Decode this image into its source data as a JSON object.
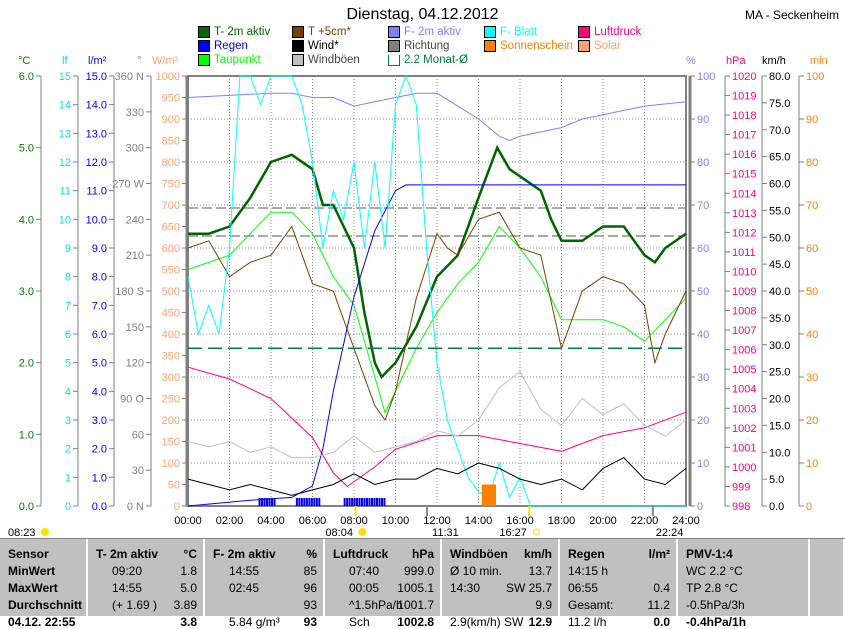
{
  "title": "Dienstag, 04.12.2012",
  "station": "MA - Seckenheim",
  "legend": [
    {
      "label": "T- 2m aktiv",
      "color": "#006400"
    },
    {
      "label": "T +5cm*",
      "color": "#7b3f00"
    },
    {
      "label": "F- 2m aktiv",
      "color": "#8080ff"
    },
    {
      "label": "F- Blatt",
      "color": "#00ffff"
    },
    {
      "label": "Luftdruck",
      "color": "#ff0080"
    },
    {
      "label": "Regen",
      "color": "#0000ff"
    },
    {
      "label": "Wind*",
      "color": "#000000"
    },
    {
      "label": "Richtung",
      "color": "#808080"
    },
    {
      "label": "Sonnenschein",
      "color": "#ff8000"
    },
    {
      "label": "Solar",
      "color": "#ffa070"
    },
    {
      "label": "Taupunkt",
      "color": "#00ff00"
    },
    {
      "label": "Windböen",
      "color": "#c0c0c0"
    },
    {
      "label": "2.2 Monat-Ø",
      "color": "#008040"
    }
  ],
  "axis_units": {
    "temp": "°C",
    "lf": "lf",
    "rain": "l/m²",
    "dir": "°",
    "solar": "W/m²",
    "hum": "%",
    "press": "hPa",
    "wind": "km/h",
    "sun": "min"
  },
  "axis_ticks": {
    "temp": [
      "0.0",
      "1.0",
      "2.0",
      "3.0",
      "4.0",
      "5.0",
      "6.0"
    ],
    "lf": [
      "0",
      "1",
      "2",
      "3",
      "4",
      "5",
      "6",
      "7",
      "8",
      "9",
      "10",
      "11",
      "12",
      "13",
      "14",
      "15"
    ],
    "rain": [
      "0.0",
      "1.0",
      "2.0",
      "3.0",
      "4.0",
      "5.0",
      "6.0",
      "7.0",
      "8.0",
      "9.0",
      "10.0",
      "11.0",
      "12.0",
      "13.0",
      "14.0",
      "15.0"
    ],
    "dir": [
      "0   N",
      "30",
      "60",
      "90  O",
      "120",
      "150",
      "180 S",
      "210",
      "240",
      "270 W",
      "300",
      "330",
      "360 N"
    ],
    "solar": [
      "0",
      "50",
      "100",
      "150",
      "200",
      "250",
      "300",
      "350",
      "400",
      "450",
      "500",
      "550",
      "600",
      "650",
      "700",
      "750",
      "800",
      "850",
      "900",
      "950",
      "1000"
    ],
    "hum": [
      "0",
      "10",
      "20",
      "30",
      "40",
      "50",
      "60",
      "70",
      "80",
      "90",
      "100"
    ],
    "press": [
      "998",
      "999",
      "1000",
      "1001",
      "1002",
      "1003",
      "1004",
      "1005",
      "1006",
      "1007",
      "1008",
      "1009",
      "1010",
      "1011",
      "1012",
      "1013",
      "1014",
      "1015",
      "1016",
      "1017",
      "1018",
      "1019",
      "1020"
    ],
    "wind": [
      "0.0",
      "5.0",
      "10.0",
      "15.0",
      "20.0",
      "25.0",
      "30.0",
      "35.0",
      "40.0",
      "45.0",
      "50.0",
      "55.0",
      "60.0",
      "65.0",
      "70.0",
      "75.0",
      "80.0"
    ],
    "sun": [
      "0",
      "10",
      "20",
      "30",
      "40",
      "50",
      "60",
      "70",
      "80",
      "90",
      "100"
    ],
    "time": [
      "00:00",
      "02:00",
      "04:00",
      "06:00",
      "08:00",
      "10:00",
      "12:00",
      "14:00",
      "16:00",
      "18:00",
      "20:00",
      "22:00",
      "24:00"
    ]
  },
  "markers": {
    "left_time": "08:23",
    "sunrise": "08:04",
    "moonrise": "11:31",
    "sunset": "16:27",
    "moonset": "22:24"
  },
  "chart_data": {
    "type": "line",
    "title": "Dienstag, 04.12.2012",
    "xlabel": "",
    "xlim": [
      0,
      24
    ],
    "series": [
      {
        "name": "T- 2m aktiv",
        "axis": "temp",
        "ylim": [
          0,
          6
        ],
        "x": [
          0,
          1,
          2,
          3,
          4,
          5,
          6,
          6.5,
          7,
          8,
          8.5,
          9,
          9.33,
          10,
          11,
          12,
          13,
          14,
          14.9,
          15.5,
          16,
          17,
          17.5,
          18,
          19,
          20,
          21,
          22,
          22.5,
          23,
          24
        ],
        "y": [
          3.8,
          3.8,
          3.9,
          4.3,
          4.8,
          4.9,
          4.7,
          4.2,
          4.2,
          3.6,
          2.7,
          2.0,
          1.8,
          2.0,
          2.5,
          3.2,
          3.5,
          4.3,
          5.0,
          4.7,
          4.6,
          4.4,
          4.0,
          3.7,
          3.7,
          3.9,
          3.9,
          3.5,
          3.4,
          3.6,
          3.8
        ]
      },
      {
        "name": "Taupunkt",
        "axis": "temp",
        "ylim": [
          0,
          6
        ],
        "x": [
          0,
          2,
          4,
          5,
          6,
          7,
          8,
          9,
          9.5,
          10,
          11,
          12,
          13,
          14,
          15,
          16,
          17,
          18,
          19,
          20,
          21,
          22,
          23,
          24
        ],
        "y": [
          3.3,
          3.5,
          4.1,
          4.1,
          3.8,
          3.2,
          2.8,
          1.8,
          1.3,
          1.6,
          2.2,
          2.7,
          3.1,
          3.4,
          3.9,
          3.6,
          3.2,
          2.6,
          2.6,
          2.6,
          2.5,
          2.3,
          2.6,
          2.9
        ]
      },
      {
        "name": "T +5cm*",
        "axis": "temp",
        "ylim": [
          0,
          6
        ],
        "x": [
          0,
          1,
          2,
          3,
          4,
          5,
          6,
          7,
          8,
          9,
          9.5,
          10,
          11,
          12,
          12.5,
          13,
          14,
          15,
          16,
          17,
          18,
          19,
          20,
          21,
          22,
          22.5,
          23,
          24
        ],
        "y": [
          3.6,
          3.7,
          3.2,
          3.4,
          3.5,
          3.9,
          3.1,
          3.0,
          2.2,
          1.4,
          1.2,
          1.6,
          2.9,
          3.8,
          3.6,
          3.5,
          4.0,
          4.1,
          3.6,
          3.5,
          2.2,
          3.0,
          3.2,
          3.1,
          2.8,
          2.0,
          2.4,
          3.0
        ]
      },
      {
        "name": "F- 2m aktiv",
        "axis": "hum",
        "ylim": [
          0,
          100
        ],
        "x": [
          0,
          4,
          5,
          6,
          7,
          8,
          10,
          11,
          12,
          13,
          14,
          15,
          15.5,
          16,
          17,
          18,
          19,
          20,
          21,
          22,
          24
        ],
        "y": [
          95,
          96,
          96,
          95,
          95,
          93,
          95,
          96,
          96,
          93,
          90,
          86,
          85,
          86,
          87,
          88,
          90,
          91,
          92,
          93,
          94
        ]
      },
      {
        "name": "Luftdruck",
        "axis": "press",
        "ylim": [
          998,
          1020
        ],
        "x": [
          0,
          2,
          4,
          6,
          7,
          7.67,
          9,
          10,
          12,
          14,
          16,
          18,
          20,
          22,
          24
        ],
        "y": [
          1005.1,
          1004.5,
          1003.5,
          1001.5,
          999.7,
          999.0,
          1000,
          1000.9,
          1001.6,
          1001.6,
          1001.2,
          1000.8,
          1001.6,
          1002,
          1002.8
        ]
      },
      {
        "name": "Regen",
        "axis": "rain",
        "ylim": [
          0,
          15
        ],
        "x": [
          0,
          3,
          5,
          6,
          6.5,
          7,
          8,
          9,
          10,
          10.5,
          24
        ],
        "y": [
          0,
          0.2,
          0.3,
          0.7,
          2,
          4,
          7.3,
          9.6,
          11,
          11.2,
          11.2
        ]
      },
      {
        "name": "F- Blatt",
        "axis": "lf",
        "ylim": [
          0,
          15
        ],
        "x": [
          0,
          0.5,
          1,
          1.5,
          2,
          2.5,
          3,
          3.5,
          4,
          4.5,
          5,
          5.5,
          6,
          6.5,
          7,
          7.5,
          8,
          8.5,
          9,
          9.5,
          10,
          10.5,
          11,
          11.5,
          12,
          12.5,
          13,
          13.5,
          14,
          14.5,
          15,
          15.5,
          16,
          16.5,
          24
        ],
        "y": [
          8,
          6,
          7,
          6,
          9,
          15,
          15,
          14,
          15,
          15,
          15,
          14,
          12,
          9,
          11,
          10,
          12,
          9,
          12,
          9,
          14,
          15,
          14,
          9,
          5,
          3,
          2,
          1,
          0.5,
          0.3,
          1.5,
          0.3,
          1,
          0,
          0
        ]
      },
      {
        "name": "Windböen",
        "axis": "wind",
        "ylim": [
          0,
          80
        ],
        "x": [
          0,
          1,
          2,
          3,
          4,
          5,
          6,
          7,
          8,
          9,
          10,
          11,
          12,
          13,
          14,
          15,
          16,
          17,
          18,
          19,
          20,
          21,
          22,
          23,
          24
        ],
        "y": [
          12,
          11,
          12,
          10,
          11,
          9,
          9,
          10,
          13,
          10,
          11,
          12,
          14,
          13,
          16,
          22,
          25,
          18,
          15,
          20,
          17,
          19,
          15,
          13,
          16
        ]
      },
      {
        "name": "Wind*",
        "axis": "wind",
        "ylim": [
          0,
          80
        ],
        "x": [
          0,
          1,
          2,
          3,
          4,
          5,
          6,
          7,
          8,
          9,
          10,
          11,
          12,
          13,
          14,
          15,
          16,
          17,
          18,
          19,
          20,
          21,
          22,
          23,
          24
        ],
        "y": [
          5,
          4,
          3,
          4,
          3,
          2,
          3,
          4,
          6,
          4,
          5,
          5,
          7,
          6,
          8,
          7,
          5,
          4,
          5,
          3,
          7,
          9,
          5,
          4,
          7
        ]
      },
      {
        "name": "Sonnenschein",
        "axis": "sun",
        "ylim": [
          0,
          100
        ],
        "x": [
          14.3,
          14.5,
          14.7
        ],
        "y": [
          5,
          5,
          5
        ]
      },
      {
        "name": "2.2 Monat-Ø",
        "axis": "temp",
        "ylim": [
          0,
          6
        ],
        "x": [
          0,
          24
        ],
        "y": [
          2.2,
          2.2
        ]
      }
    ]
  },
  "table": {
    "headers": [
      [
        "Sensor",
        ""
      ],
      [
        "T- 2m aktiv",
        "°C"
      ],
      [
        "F- 2m aktiv",
        "%"
      ],
      [
        "Luftdruck",
        "hPa"
      ],
      [
        "Windböen",
        "km/h"
      ],
      [
        "Regen",
        "l/m²"
      ],
      [
        "PMV-1:4",
        ""
      ]
    ],
    "rows": [
      [
        "MinWert",
        "09:20",
        "1.8",
        "14:55",
        "85",
        "07:40",
        "999.0",
        "Ø 10 min.",
        "13.7",
        "14:15 h",
        "",
        "WC 2.2 °C"
      ],
      [
        "MaxWert",
        "14:55",
        "5.0",
        "02:45",
        "96",
        "00:05",
        "1005.1",
        "14:30",
        "SW 25.7",
        "06:55",
        "0.4",
        "TP 2.8 °C"
      ],
      [
        "Durchschnitt",
        "(+ 1.69 )",
        "3.89",
        "",
        "93",
        "^1.5hPa/h",
        "1001.7",
        "",
        "9.9",
        "Gesamt:",
        "11.2",
        "-0.5hPa/3h"
      ],
      [
        "04.12. 22:55",
        "",
        "3.8",
        "5.84 g/m³",
        "93",
        "Sch",
        "1002.8",
        "2.9(km/h) SW",
        "12.9",
        "11.2 l/h",
        "0.0",
        "-0.4hPa/1h"
      ]
    ]
  }
}
